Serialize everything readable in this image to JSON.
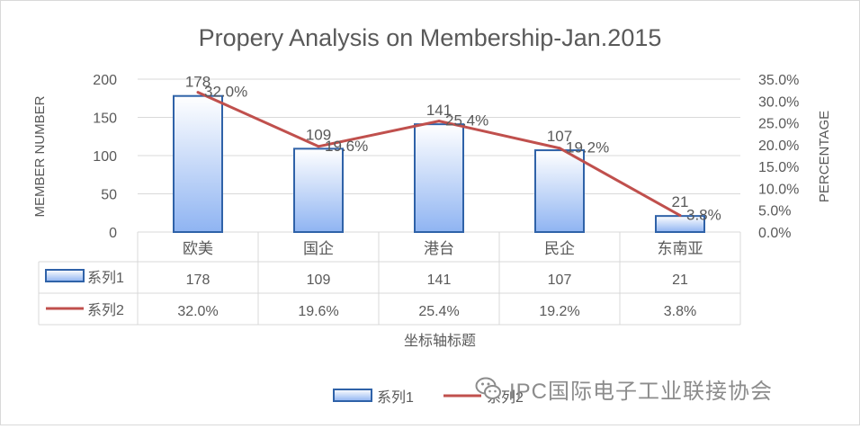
{
  "chart_data": {
    "type": "bar+line",
    "title": "Propery Analysis on Membership-Jan.2015",
    "categories": [
      "欧美",
      "国企",
      "港台",
      "民企",
      "东南亚"
    ],
    "series": [
      {
        "name": "系列1",
        "type": "bar",
        "axis": "left",
        "values": [
          178,
          109,
          141,
          107,
          21
        ],
        "labels": [
          "178",
          "109",
          "141",
          "107",
          "21"
        ]
      },
      {
        "name": "系列2",
        "type": "line",
        "axis": "right",
        "values": [
          32.0,
          19.6,
          25.4,
          19.2,
          3.8
        ],
        "labels": [
          "32.0%",
          "19.6%",
          "25.4%",
          "19.2%",
          "3.8%"
        ]
      }
    ],
    "ylabel": "MEMBER NUMBER",
    "y2label": "PERCENTAGE",
    "xlabel": "坐标轴标题",
    "ylim": [
      0,
      200
    ],
    "y2lim": [
      0,
      35
    ],
    "yticks": [
      "0",
      "50",
      "100",
      "150",
      "200"
    ],
    "y2ticks": [
      "0.0%",
      "5.0%",
      "10.0%",
      "15.0%",
      "20.0%",
      "25.0%",
      "30.0%",
      "35.0%"
    ],
    "grid": true,
    "legend": "bottom",
    "data_table": true
  },
  "colors": {
    "bar_fill_top": "#ffffff",
    "bar_fill_bottom": "#8fb4f2",
    "bar_stroke": "#2f62a8",
    "line": "#c0504d",
    "grid": "#d9d9d9",
    "text": "#595959"
  },
  "watermark": {
    "text": "IPC国际电子工业联接协会",
    "icon": "wechat-icon"
  }
}
